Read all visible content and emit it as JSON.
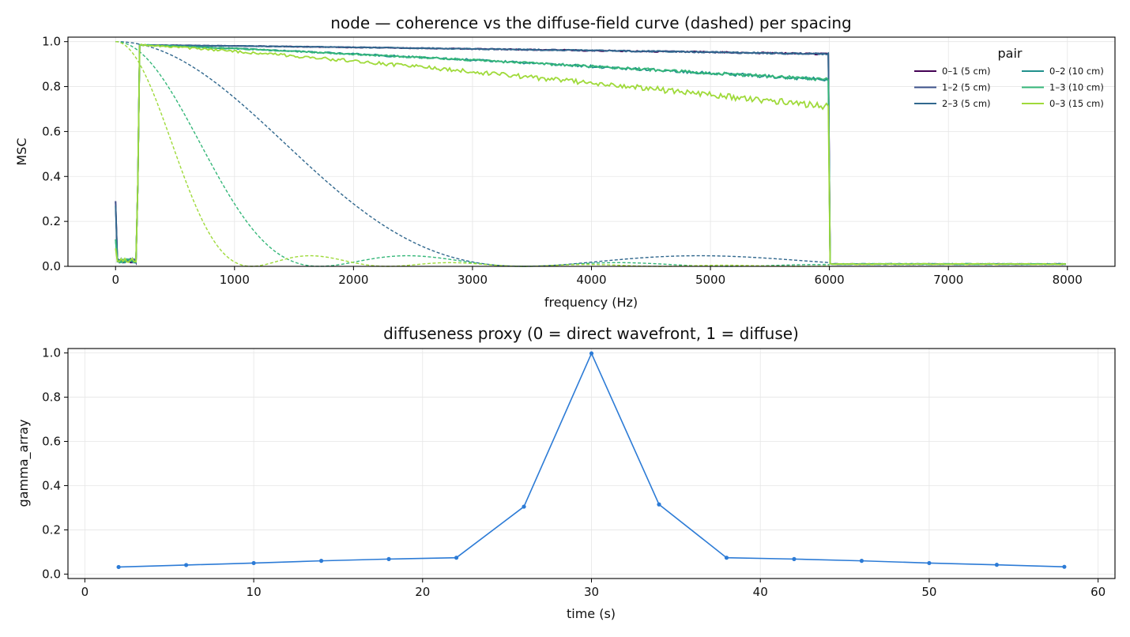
{
  "chart_data": [
    {
      "type": "line",
      "title": "node — coherence vs the diffuse-field curve (dashed) per spacing",
      "xlabel": "frequency (Hz)",
      "ylabel": "MSC",
      "xlim": [
        -400,
        8400
      ],
      "ylim": [
        0,
        1.02
      ],
      "xticks": [
        0,
        1000,
        2000,
        3000,
        4000,
        5000,
        6000,
        7000,
        8000
      ],
      "yticks": [
        0.0,
        0.2,
        0.4,
        0.6,
        0.8,
        1.0
      ],
      "grid": true,
      "legend": {
        "title": "pair",
        "placement": "top-right",
        "columns": 2
      },
      "passband_hz": [
        200,
        6000
      ],
      "series": [
        {
          "name": "0–1 (5 cm)",
          "color": "#440154",
          "spacing_m": 0.05,
          "plateau_start": 0.985,
          "plateau_end": 0.945,
          "noise": 0.003,
          "start_value": 0.29
        },
        {
          "name": "1–2 (5 cm)",
          "color": "#3b528b",
          "spacing_m": 0.05,
          "plateau_start": 0.985,
          "plateau_end": 0.945,
          "noise": 0.003,
          "start_value": 0.29
        },
        {
          "name": "2–3 (5 cm)",
          "color": "#31688e",
          "spacing_m": 0.05,
          "plateau_start": 0.985,
          "plateau_end": 0.945,
          "noise": 0.003,
          "start_value": 0.27
        },
        {
          "name": "0–2 (10 cm)",
          "color": "#21918c",
          "spacing_m": 0.1,
          "plateau_start": 0.985,
          "plateau_end": 0.83,
          "noise": 0.006,
          "start_value": 0.12
        },
        {
          "name": "1–3 (10 cm)",
          "color": "#35b779",
          "spacing_m": 0.1,
          "plateau_start": 0.985,
          "plateau_end": 0.83,
          "noise": 0.006,
          "start_value": 0.12
        },
        {
          "name": "0–3 (15 cm)",
          "color": "#9fda3a",
          "spacing_m": 0.15,
          "plateau_start": 0.985,
          "plateau_end": 0.71,
          "noise": 0.012,
          "start_value": 0.08
        }
      ],
      "diffuse_curves": [
        {
          "spacing_m": 0.05,
          "color": "#31688e"
        },
        {
          "spacing_m": 0.1,
          "color": "#35b779"
        },
        {
          "spacing_m": 0.15,
          "color": "#9fda3a"
        }
      ]
    },
    {
      "type": "line",
      "title": "diffuseness proxy (0 = direct wavefront, 1 = diffuse)",
      "xlabel": "time (s)",
      "ylabel": "gamma_array",
      "xlim": [
        -1,
        61
      ],
      "ylim": [
        -0.02,
        1.02
      ],
      "xticks": [
        0,
        10,
        20,
        30,
        40,
        50,
        60
      ],
      "yticks": [
        0.0,
        0.2,
        0.4,
        0.6,
        0.8,
        1.0
      ],
      "grid": true,
      "color": "#2c7bd6",
      "x": [
        2,
        6,
        10,
        14,
        18,
        22,
        26,
        30,
        34,
        38,
        42,
        46,
        50,
        54,
        58
      ],
      "y": [
        0.032,
        0.041,
        0.05,
        0.06,
        0.068,
        0.074,
        0.305,
        0.998,
        0.315,
        0.074,
        0.068,
        0.06,
        0.05,
        0.042,
        0.033
      ]
    }
  ]
}
